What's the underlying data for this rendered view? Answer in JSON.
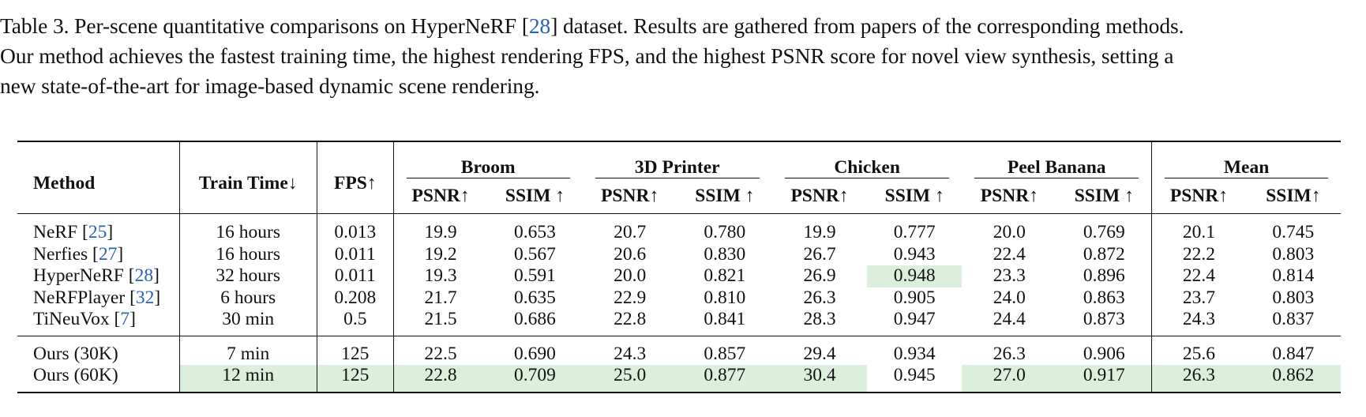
{
  "caption": {
    "line1_pre": "Table 3. Per-scene quantitative comparisons on HyperNeRF [",
    "line1_cite": "28",
    "line1_post": "] dataset. Results are gathered from papers of the corresponding methods.",
    "line2": "Our method achieves the fastest training time, the highest rendering FPS, and the highest PSNR score for novel view synthesis, setting a",
    "line3": "new state-of-the-art for image-based dynamic scene rendering."
  },
  "table": {
    "headers": {
      "method": "Method",
      "train_time": "Train Time↓",
      "fps": "FPS↑",
      "groups": [
        "Broom",
        "3D Printer",
        "Chicken",
        "Peel Banana",
        "Mean"
      ],
      "sub": [
        "PSNR↑",
        "SSIM ↑",
        "PSNR↑",
        "SSIM ↑",
        "PSNR↑",
        "SSIM ↑",
        "PSNR↑",
        "SSIM ↑",
        "PSNR↑",
        "SSIM↑"
      ]
    },
    "baselines": [
      {
        "name": "NeRF ",
        "cite": "25",
        "time": "16 hours",
        "fps": "0.013",
        "vals": [
          "19.9",
          "0.653",
          "20.7",
          "0.780",
          "19.9",
          "0.777",
          "20.0",
          "0.769",
          "20.1",
          "0.745"
        ]
      },
      {
        "name": "Nerfies ",
        "cite": "27",
        "time": "16 hours",
        "fps": "0.011",
        "vals": [
          "19.2",
          "0.567",
          "20.6",
          "0.830",
          "26.7",
          "0.943",
          "22.4",
          "0.872",
          "22.2",
          "0.803"
        ]
      },
      {
        "name": "HyperNeRF ",
        "cite": "28",
        "time": "32 hours",
        "fps": "0.011",
        "vals": [
          "19.3",
          "0.591",
          "20.0",
          "0.821",
          "26.9",
          "0.948",
          "23.3",
          "0.896",
          "22.4",
          "0.814"
        ]
      },
      {
        "name": "NeRFPlayer ",
        "cite": "32",
        "time": "6 hours",
        "fps": "0.208",
        "vals": [
          "21.7",
          "0.635",
          "22.9",
          "0.810",
          "26.3",
          "0.905",
          "24.0",
          "0.863",
          "23.7",
          "0.803"
        ]
      },
      {
        "name": "TiNeuVox ",
        "cite": "7",
        "time": "30 min",
        "fps": "0.5",
        "vals": [
          "21.5",
          "0.686",
          "22.8",
          "0.841",
          "28.3",
          "0.947",
          "24.4",
          "0.873",
          "24.3",
          "0.837"
        ]
      }
    ],
    "ours": [
      {
        "name": "Ours (30K)",
        "time": "7 min",
        "fps": "125",
        "vals": [
          "22.5",
          "0.690",
          "24.3",
          "0.857",
          "29.4",
          "0.934",
          "26.3",
          "0.906",
          "25.6",
          "0.847"
        ]
      },
      {
        "name": "Ours (60K)",
        "time": "12 min",
        "fps": "125",
        "vals": [
          "22.8",
          "0.709",
          "25.0",
          "0.877",
          "30.4",
          "0.945",
          "27.0",
          "0.917",
          "26.3",
          "0.862"
        ]
      }
    ],
    "highlight_color": "#dcefdc",
    "citation_color": "#2a62b8"
  }
}
